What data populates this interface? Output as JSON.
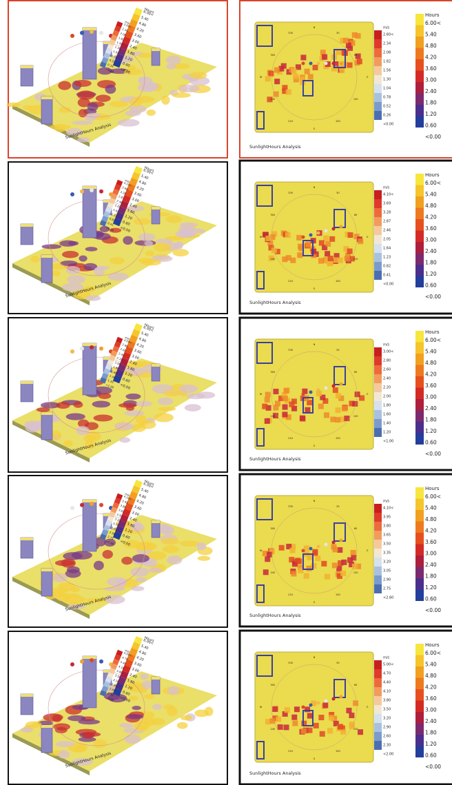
{
  "caption": "SunlightHours Analysis",
  "hours_legend": {
    "unit": "Hours",
    "labels": [
      "6.00<",
      "5.40",
      "4.80",
      "4.20",
      "3.60",
      "3.00",
      "2.40",
      "1.80",
      "1.20",
      "0.60",
      "<0.00"
    ],
    "colors": [
      "#f6e63e",
      "#f5c52b",
      "#f2a020",
      "#ee7a1f",
      "#e6501f",
      "#d42a25",
      "#ad1f3d",
      "#7c2a6f",
      "#4b2f8c",
      "#233e9c"
    ]
  },
  "wind_colors": [
    "#c81e1e",
    "#df3a29",
    "#ee6a3b",
    "#f29b5d",
    "#f5c99b",
    "#f2e7d2",
    "#d6e1ee",
    "#a8c1de",
    "#7a9bcb",
    "#4c6eb0"
  ],
  "compass": [
    "N",
    "330",
    "30",
    "300",
    "60",
    "W",
    "E",
    "240",
    "120",
    "210",
    "150",
    "S"
  ],
  "panels": [
    {
      "wind_legend": {
        "unit": "m/s",
        "labels": [
          "2.60<",
          "2.34",
          "2.08",
          "1.82",
          "1.56",
          "1.30",
          "1.04",
          "0.78",
          "0.52",
          "0.26",
          "<0.00"
        ]
      }
    },
    {
      "wind_legend": {
        "unit": "m/s",
        "labels": [
          "4.10<",
          "3.69",
          "3.28",
          "2.87",
          "2.46",
          "2.05",
          "1.64",
          "1.23",
          "0.82",
          "0.41",
          "<0.00"
        ]
      }
    },
    {
      "wind_legend": {
        "unit": "m/s",
        "labels": [
          "3.00<",
          "2.80",
          "2.60",
          "2.40",
          "2.20",
          "2.00",
          "1.80",
          "1.60",
          "1.40",
          "1.20",
          "<1.00"
        ]
      }
    },
    {
      "wind_legend": {
        "unit": "m/s",
        "labels": [
          "4.10<",
          "3.95",
          "3.80",
          "3.65",
          "3.50",
          "3.35",
          "3.20",
          "3.05",
          "2.90",
          "2.75",
          "<2.60"
        ]
      }
    },
    {
      "wind_legend": {
        "unit": "m/s",
        "labels": [
          "5.00<",
          "4.70",
          "4.40",
          "4.10",
          "3.80",
          "3.50",
          "3.20",
          "2.90",
          "2.60",
          "2.30",
          "<2.00"
        ]
      }
    }
  ]
}
